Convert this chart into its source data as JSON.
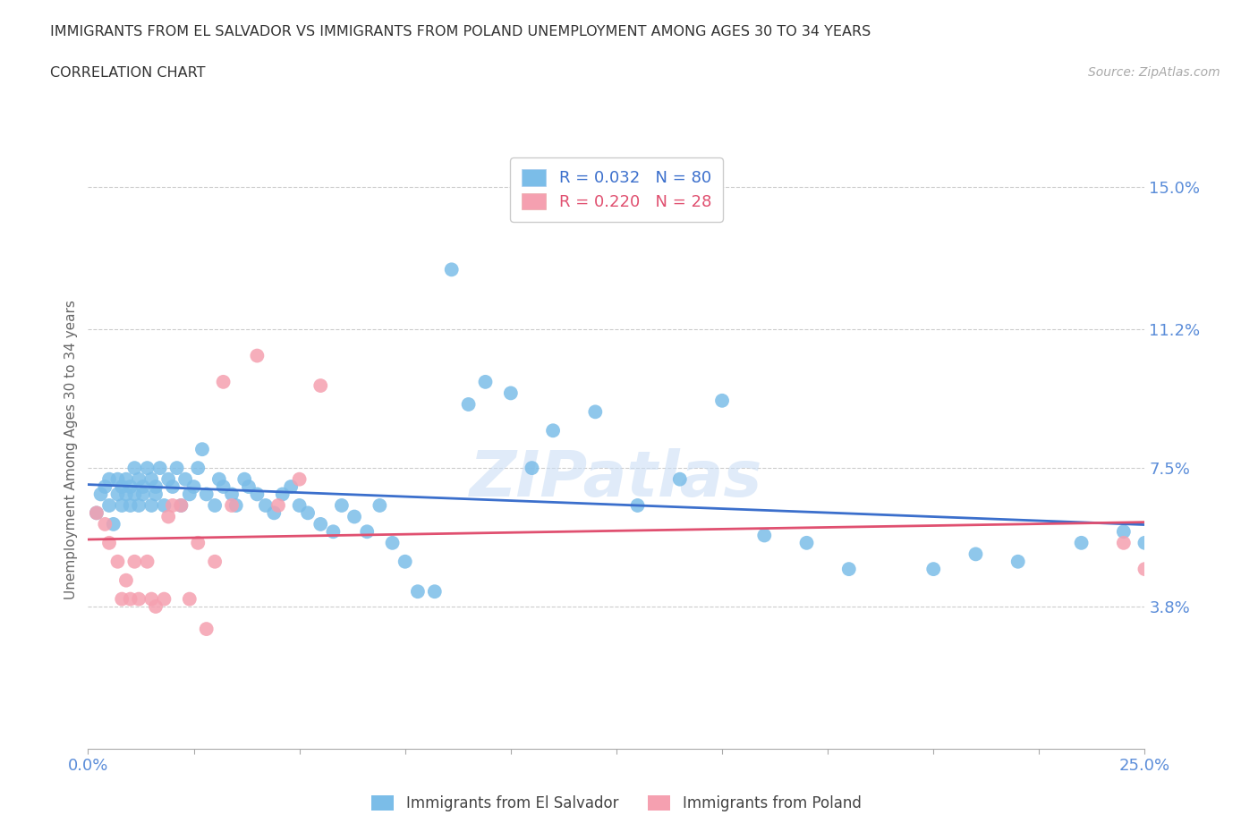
{
  "title_line1": "IMMIGRANTS FROM EL SALVADOR VS IMMIGRANTS FROM POLAND UNEMPLOYMENT AMONG AGES 30 TO 34 YEARS",
  "title_line2": "CORRELATION CHART",
  "source_text": "Source: ZipAtlas.com",
  "ylabel": "Unemployment Among Ages 30 to 34 years",
  "legend_label1": "Immigrants from El Salvador",
  "legend_label2": "Immigrants from Poland",
  "R1": 0.032,
  "N1": 80,
  "R2": 0.22,
  "N2": 28,
  "xlim": [
    0.0,
    0.25
  ],
  "ylim": [
    0.0,
    0.16
  ],
  "yticks": [
    0.038,
    0.075,
    0.112,
    0.15
  ],
  "ytick_labels": [
    "3.8%",
    "7.5%",
    "11.2%",
    "15.0%"
  ],
  "xticks": [
    0.0,
    0.025,
    0.05,
    0.075,
    0.1,
    0.125,
    0.15,
    0.175,
    0.2,
    0.225,
    0.25
  ],
  "xtick_labels": [
    "0.0%",
    "",
    "",
    "",
    "",
    "",
    "",
    "",
    "",
    "",
    "25.0%"
  ],
  "color_salvador": "#7bbde8",
  "color_poland": "#f5a0b0",
  "color_line_salvador": "#3b6fcc",
  "color_line_poland": "#e05070",
  "color_axis_labels": "#5b8dd9",
  "watermark": "ZIPatlas",
  "background_color": "#ffffff",
  "salvador_x": [
    0.002,
    0.003,
    0.004,
    0.005,
    0.005,
    0.006,
    0.007,
    0.007,
    0.008,
    0.008,
    0.009,
    0.009,
    0.01,
    0.01,
    0.011,
    0.011,
    0.012,
    0.012,
    0.013,
    0.013,
    0.014,
    0.015,
    0.015,
    0.016,
    0.016,
    0.017,
    0.018,
    0.019,
    0.02,
    0.021,
    0.022,
    0.023,
    0.024,
    0.025,
    0.026,
    0.027,
    0.028,
    0.03,
    0.031,
    0.032,
    0.034,
    0.035,
    0.037,
    0.038,
    0.04,
    0.042,
    0.044,
    0.046,
    0.048,
    0.05,
    0.052,
    0.055,
    0.058,
    0.06,
    0.063,
    0.066,
    0.069,
    0.072,
    0.075,
    0.078,
    0.082,
    0.086,
    0.09,
    0.094,
    0.1,
    0.105,
    0.11,
    0.12,
    0.13,
    0.14,
    0.15,
    0.16,
    0.17,
    0.18,
    0.2,
    0.21,
    0.22,
    0.235,
    0.245,
    0.25
  ],
  "salvador_y": [
    0.063,
    0.068,
    0.07,
    0.065,
    0.072,
    0.06,
    0.068,
    0.072,
    0.065,
    0.07,
    0.068,
    0.072,
    0.065,
    0.07,
    0.068,
    0.075,
    0.065,
    0.072,
    0.068,
    0.07,
    0.075,
    0.065,
    0.072,
    0.068,
    0.07,
    0.075,
    0.065,
    0.072,
    0.07,
    0.075,
    0.065,
    0.072,
    0.068,
    0.07,
    0.075,
    0.08,
    0.068,
    0.065,
    0.072,
    0.07,
    0.068,
    0.065,
    0.072,
    0.07,
    0.068,
    0.065,
    0.063,
    0.068,
    0.07,
    0.065,
    0.063,
    0.06,
    0.058,
    0.065,
    0.062,
    0.058,
    0.065,
    0.055,
    0.05,
    0.042,
    0.042,
    0.128,
    0.092,
    0.098,
    0.095,
    0.075,
    0.085,
    0.09,
    0.065,
    0.072,
    0.093,
    0.057,
    0.055,
    0.048,
    0.048,
    0.052,
    0.05,
    0.055,
    0.058,
    0.055
  ],
  "poland_x": [
    0.002,
    0.004,
    0.005,
    0.007,
    0.008,
    0.009,
    0.01,
    0.011,
    0.012,
    0.014,
    0.015,
    0.016,
    0.018,
    0.019,
    0.02,
    0.022,
    0.024,
    0.026,
    0.028,
    0.03,
    0.032,
    0.034,
    0.04,
    0.045,
    0.05,
    0.055,
    0.245,
    0.25
  ],
  "poland_y": [
    0.063,
    0.06,
    0.055,
    0.05,
    0.04,
    0.045,
    0.04,
    0.05,
    0.04,
    0.05,
    0.04,
    0.038,
    0.04,
    0.062,
    0.065,
    0.065,
    0.04,
    0.055,
    0.032,
    0.05,
    0.098,
    0.065,
    0.105,
    0.065,
    0.072,
    0.097,
    0.055,
    0.048
  ]
}
